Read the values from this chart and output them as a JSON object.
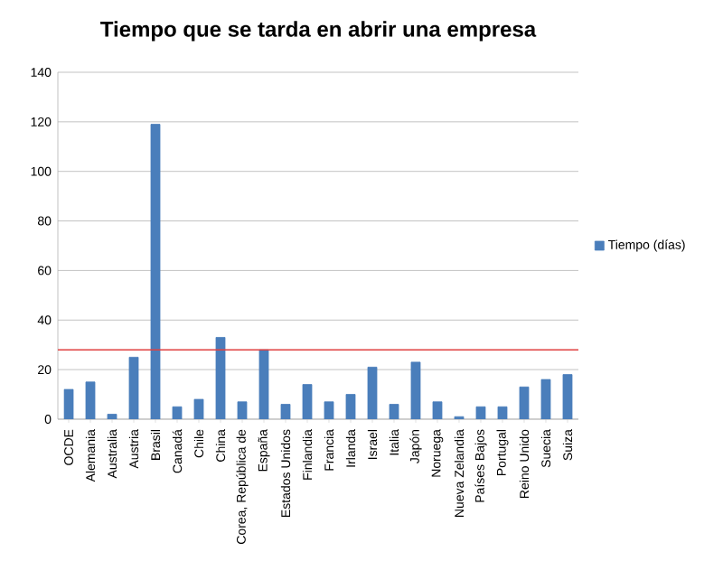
{
  "chart_data": {
    "type": "bar",
    "title": "Tiempo que se tarda en abrir una empresa",
    "categories": [
      "OCDE",
      "Alemania",
      "Australia",
      "Austria",
      "Brasil",
      "Canadá",
      "Chile",
      "China",
      "Corea, República de",
      "España",
      "Estados Unidos",
      "Finlandia",
      "Francia",
      "Irlanda",
      "Israel",
      "Italia",
      "Japón",
      "Noruega",
      "Nueva Zelandia",
      "Países Bajos",
      "Portugal",
      "Reino Unido",
      "Suecia",
      "Suiza"
    ],
    "series": [
      {
        "name": "Tiempo (días)",
        "color": "#4a7ebb",
        "values": [
          12,
          15,
          2,
          25,
          119,
          5,
          8,
          33,
          7,
          28,
          6,
          14,
          7,
          10,
          21,
          6,
          23,
          7,
          1,
          5,
          5,
          13,
          16,
          18
        ]
      }
    ],
    "ylim": [
      0,
      140
    ],
    "yticks": [
      0,
      20,
      40,
      60,
      80,
      100,
      120,
      140
    ],
    "grid": "y",
    "legend": "right",
    "ref_lines": [
      {
        "axis": "y",
        "value": 28,
        "color": "#e04040"
      }
    ]
  }
}
